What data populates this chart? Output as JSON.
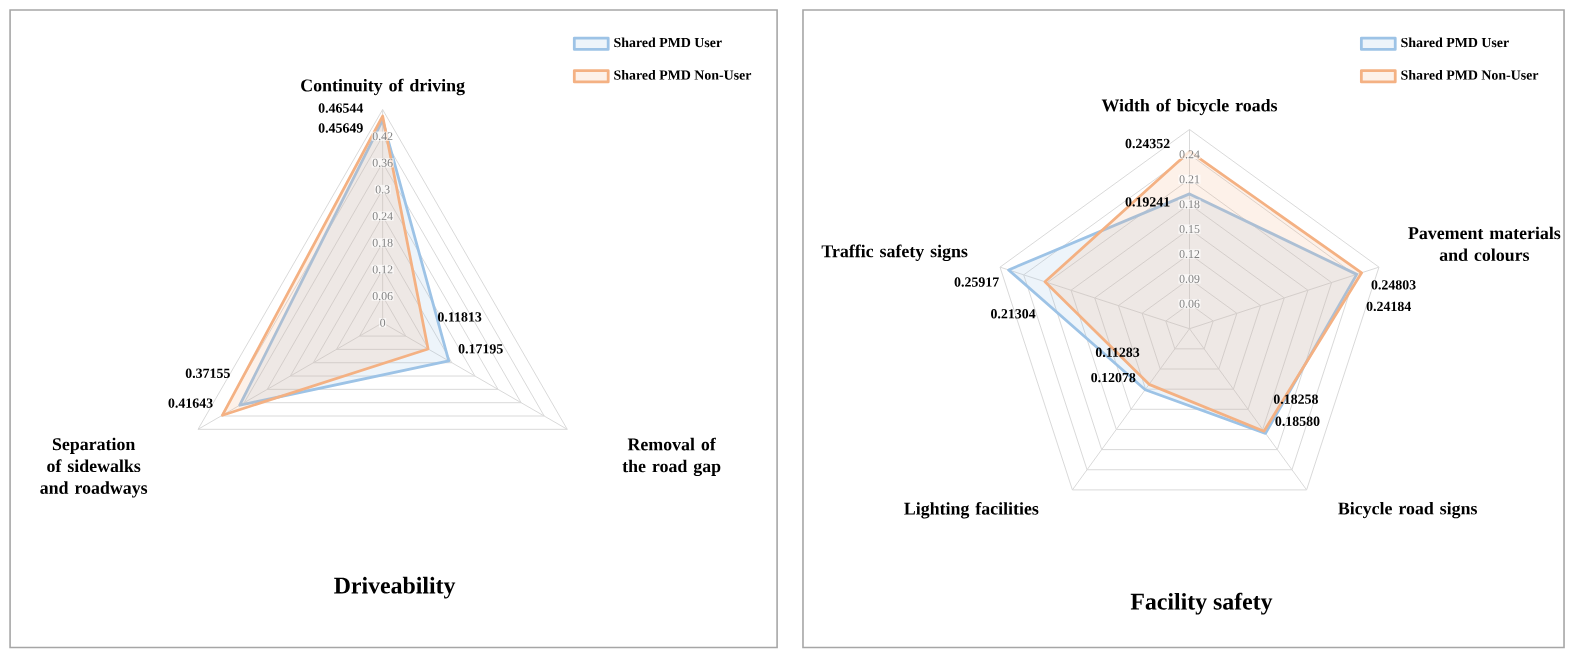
{
  "chart_data": [
    {
      "type": "radar",
      "title": "Driveability",
      "categories": [
        "Continuity of driving",
        "Removal of the road gap",
        "Separation of sidewalks and roadways"
      ],
      "series": [
        {
          "name": "Shared PMD User",
          "color": "#9dc3e6",
          "values": [
            0.45649,
            0.17195,
            0.37155
          ],
          "value_labels": [
            "0.45649",
            "0.17195",
            "0.37155"
          ]
        },
        {
          "name": "Shared PMD Non-User",
          "color": "#f4b183",
          "values": [
            0.46544,
            0.11813,
            0.41643
          ],
          "value_labels": [
            "0.46544",
            "0.11813",
            "0.41643"
          ]
        }
      ],
      "ylim": [
        0,
        0.48
      ],
      "yticks": [
        0,
        0.06,
        0.12,
        0.18,
        0.24,
        0.3,
        0.36,
        0.42
      ],
      "grid": true,
      "legend": "top right"
    },
    {
      "type": "radar",
      "title": "Facility safety",
      "categories": [
        "Width of bicycle roads",
        "Pavement materials and colours",
        "Bicycle road signs",
        "Lighting facilities",
        "Traffic safety signs"
      ],
      "series": [
        {
          "name": "Shared PMD User",
          "color": "#9dc3e6",
          "values": [
            0.19241,
            0.24184,
            0.1858,
            0.12078,
            0.25917
          ],
          "value_labels": [
            "0.19241",
            "0.24184",
            "0.18580",
            "0.12078",
            "0.25917"
          ]
        },
        {
          "name": "Shared PMD Non-User",
          "color": "#f4b183",
          "values": [
            0.24352,
            0.24803,
            0.18258,
            0.11283,
            0.21304
          ],
          "value_labels": [
            "0.24352",
            "0.24803",
            "0.18258",
            "0.11283",
            "0.21304"
          ]
        }
      ],
      "ylim": [
        0.03,
        0.27
      ],
      "yticks": [
        0.06,
        0.09,
        0.12,
        0.15,
        0.18,
        0.21,
        0.24
      ],
      "grid": true,
      "legend": "top right"
    }
  ]
}
